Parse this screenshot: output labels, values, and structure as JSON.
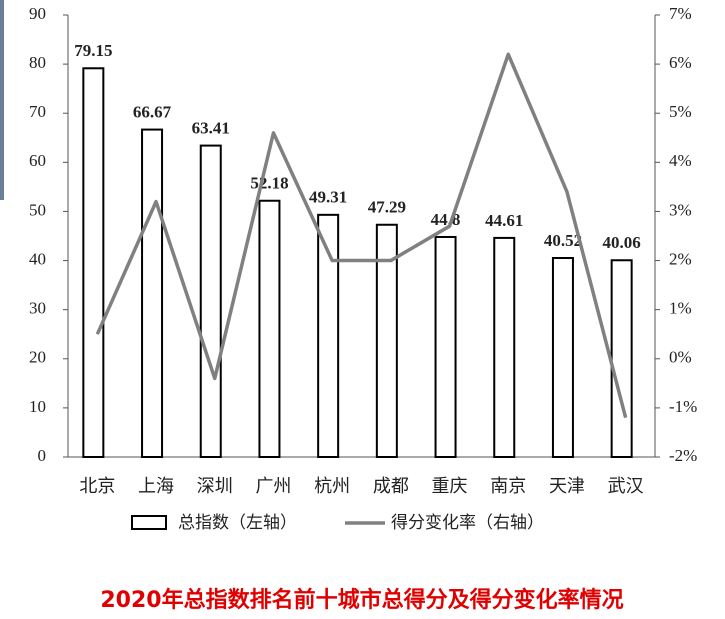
{
  "chart_data": {
    "type": "bar-line",
    "title": "2020年总指数排名前十城市总得分及得分变化率情况",
    "categories": [
      "北京",
      "上海",
      "深圳",
      "广州",
      "杭州",
      "成都",
      "重庆",
      "南京",
      "天津",
      "武汉"
    ],
    "series": [
      {
        "name": "总指数（左轴）",
        "type": "bar",
        "color": "#000000",
        "values": [
          79.15,
          66.67,
          63.41,
          52.18,
          49.31,
          47.29,
          44.8,
          44.61,
          40.52,
          40.06
        ]
      },
      {
        "name": "得分变化率（右轴）",
        "type": "line",
        "axis": "y2",
        "color": "#808080",
        "values": [
          0.5,
          3.2,
          -0.4,
          4.6,
          2.0,
          2.0,
          2.7,
          6.2,
          3.4,
          -1.2
        ]
      }
    ],
    "ylim": [
      0,
      90
    ],
    "yticks": [
      0,
      10,
      20,
      30,
      40,
      50,
      60,
      70,
      80,
      90
    ],
    "y2lim": [
      -2,
      7
    ],
    "y2ticks": [
      {
        "value": -2,
        "label": "-2%"
      },
      {
        "value": -1,
        "label": "-1%"
      },
      {
        "value": 0,
        "label": "0%"
      },
      {
        "value": 1,
        "label": "1%"
      },
      {
        "value": 2,
        "label": "2%"
      },
      {
        "value": 3,
        "label": "3%"
      },
      {
        "value": 4,
        "label": "4%"
      },
      {
        "value": 5,
        "label": "5%"
      },
      {
        "value": 6,
        "label": "6%"
      },
      {
        "value": 7,
        "label": "7%"
      }
    ]
  }
}
